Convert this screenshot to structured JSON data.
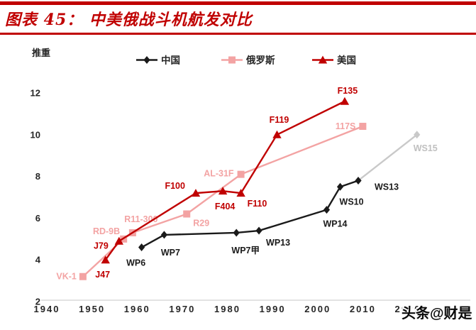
{
  "header": {
    "title": "图表 45： 中美俄战斗机航发对比",
    "accent_color": "#c00000"
  },
  "footer": {
    "watermark": "头条@财是"
  },
  "chart_data": {
    "type": "line",
    "title": "中美俄战斗机航发对比",
    "ylabel": "推重",
    "xlabel": "",
    "xlim": [
      1940,
      2020
    ],
    "ylim": [
      2,
      12
    ],
    "xticks": [
      1940,
      1950,
      1960,
      1970,
      1980,
      1990,
      2000,
      2010,
      2020
    ],
    "yticks": [
      2,
      4,
      6,
      8,
      10,
      12
    ],
    "grid": false,
    "legend_position": "top",
    "colors": {
      "china": "#1a1a1a",
      "russia": "#f3a3a3",
      "usa": "#c00000",
      "projected": "#c9c9c9",
      "projected_label": "#c0c0c0",
      "axis": "#d9d9d9",
      "tick_text": "#262626"
    },
    "legend": [
      {
        "key": "china",
        "label": "中国",
        "marker": "diamond"
      },
      {
        "key": "russia",
        "label": "俄罗斯",
        "marker": "square"
      },
      {
        "key": "usa",
        "label": "美国",
        "marker": "triangle"
      }
    ],
    "series": [
      {
        "key": "russia",
        "name": "俄罗斯",
        "marker": "square",
        "points": [
          {
            "label": "VK-1",
            "year": 1948,
            "value": 3.2,
            "anchor": "end",
            "dx": -9,
            "dy": 4
          },
          {
            "label": "RD-9B",
            "year": 1957,
            "value": 5.0,
            "anchor": "end",
            "dx": -5,
            "dy": -7
          },
          {
            "label": "R11-300",
            "year": 1959,
            "value": 5.3,
            "anchor": "middle",
            "dx": 12,
            "dy": -15
          },
          {
            "label": "R29",
            "year": 1971,
            "value": 6.2,
            "anchor": "start",
            "dx": 9,
            "dy": 17
          },
          {
            "label": "AL-31F",
            "year": 1983,
            "value": 8.1,
            "anchor": "end",
            "dx": -10,
            "dy": 3
          },
          {
            "label": "117S",
            "year": 2010,
            "value": 10.4,
            "anchor": "end",
            "dx": -10,
            "dy": 4
          }
        ]
      },
      {
        "key": "china",
        "name": "中国",
        "marker": "diamond",
        "points": [
          {
            "label": "WP6",
            "year": 1961,
            "value": 4.6,
            "anchor": "middle",
            "dx": -8,
            "dy": 26
          },
          {
            "label": "WP7",
            "year": 1966,
            "value": 5.2,
            "anchor": "middle",
            "dx": 9,
            "dy": 29
          },
          {
            "label": "WP7甲",
            "year": 1982,
            "value": 5.3,
            "anchor": "middle",
            "dx": 13,
            "dy": 29
          },
          {
            "label": "WP13",
            "year": 1987,
            "value": 5.4,
            "anchor": "start",
            "dx": 10,
            "dy": 21
          },
          {
            "label": "WP14",
            "year": 2002,
            "value": 6.4,
            "anchor": "middle",
            "dx": 12,
            "dy": 24
          },
          {
            "label": "WS10",
            "year": 2005,
            "value": 7.5,
            "anchor": "middle",
            "dx": 16,
            "dy": 25
          },
          {
            "label": "WS13",
            "year": 2009,
            "value": 7.8,
            "anchor": "start",
            "dx": 23,
            "dy": 13
          },
          {
            "label": "WS15",
            "year": 2022,
            "value": 10.0,
            "anchor": "middle",
            "dx": 12,
            "dy": 23,
            "projected": true
          }
        ]
      },
      {
        "key": "usa",
        "name": "美国",
        "marker": "triangle",
        "points": [
          {
            "label": "J47",
            "year": 1953,
            "value": 4.0,
            "anchor": "middle",
            "dx": -4,
            "dy": 25
          },
          {
            "label": "J79",
            "year": 1956,
            "value": 4.9,
            "anchor": "end",
            "dx": -15,
            "dy": 11
          },
          {
            "label": "F100",
            "year": 1973,
            "value": 7.2,
            "anchor": "end",
            "dx": -15,
            "dy": -6
          },
          {
            "label": "F404",
            "year": 1979,
            "value": 7.3,
            "anchor": "middle",
            "dx": 3,
            "dy": 26
          },
          {
            "label": "F110",
            "year": 1983,
            "value": 7.2,
            "anchor": "start",
            "dx": 9,
            "dy": 19
          },
          {
            "label": "F119",
            "year": 1991,
            "value": 10.0,
            "anchor": "middle",
            "dx": 3,
            "dy": -17
          },
          {
            "label": "F135",
            "year": 2006,
            "value": 11.6,
            "anchor": "middle",
            "dx": 4,
            "dy": -11
          }
        ]
      }
    ]
  }
}
